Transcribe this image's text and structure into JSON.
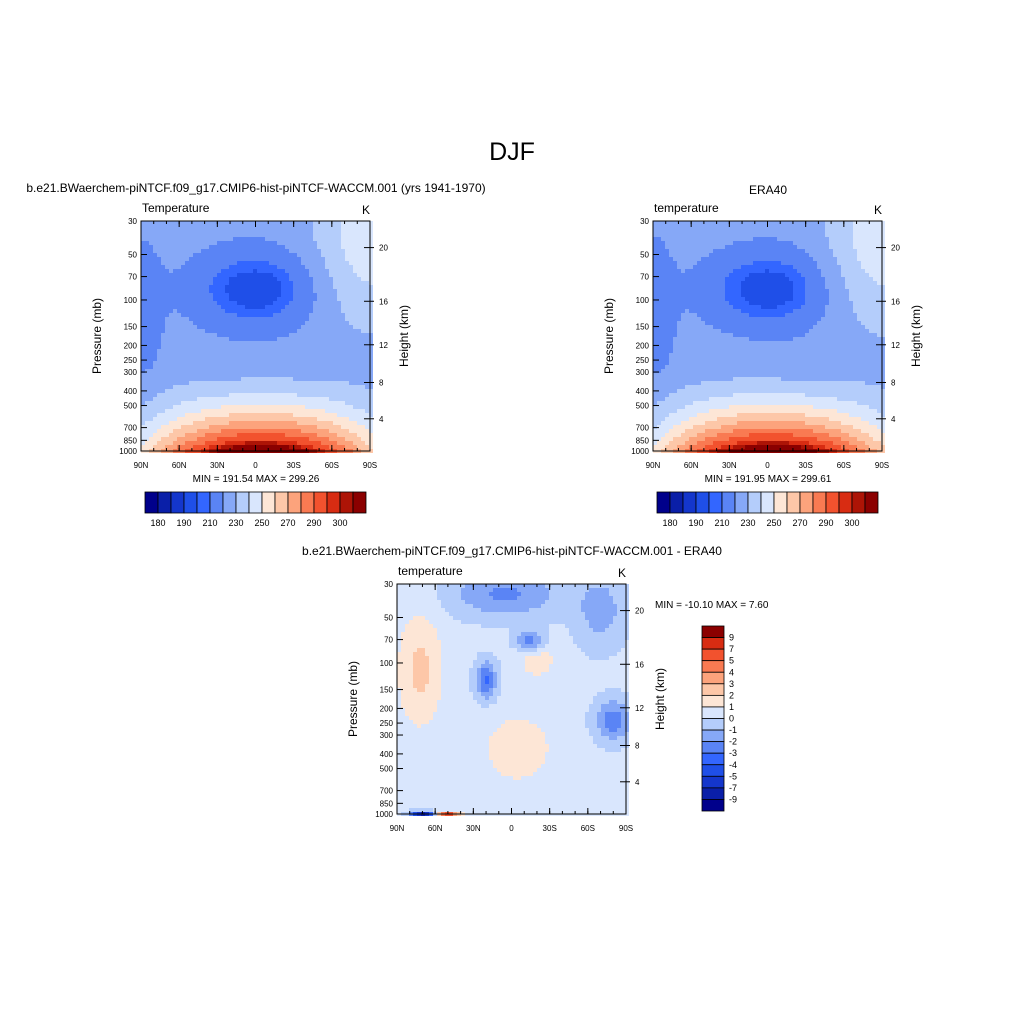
{
  "page": {
    "title": "DJF"
  },
  "chart_data": [
    {
      "type": "heatmap",
      "id": "model",
      "title": "b.e21.BWaerchem-piNTCF.f09_g17.CMIP6-hist-piNTCF-WACCM.001 (yrs 1941-1970)",
      "left_label": "Temperature",
      "right_label": "K",
      "ylabel": "Pressure (mb)",
      "ylabel_right": "Height (km)",
      "x_ticks": [
        "90N",
        "60N",
        "30N",
        "0",
        "30S",
        "60S",
        "90S"
      ],
      "y_ticks": [
        "30",
        "50",
        "70",
        "100",
        "150",
        "200",
        "250",
        "300",
        "400",
        "500",
        "700",
        "850",
        "1000"
      ],
      "y_right_ticks": [
        "20",
        "16",
        "12",
        "8",
        "4"
      ],
      "xlim": [
        90,
        -90
      ],
      "ylim": [
        30,
        1000
      ],
      "stats": "MIN = 191.54  MAX = 299.26",
      "levels": [
        180,
        185,
        190,
        195,
        200,
        210,
        220,
        230,
        240,
        250,
        260,
        270,
        280,
        290,
        295,
        300
      ],
      "colorbar_labels": [
        "180",
        "190",
        "210",
        "230",
        "250",
        "270",
        "290",
        "300"
      ],
      "colors": [
        "#00008b",
        "#0a1fa8",
        "#1436cc",
        "#1f4fe8",
        "#3366ff",
        "#5a84f5",
        "#86a8f7",
        "#b4cdfb",
        "#d9e6fd",
        "#fde6d6",
        "#fdc7a8",
        "#fca37c",
        "#f97a52",
        "#f2522e",
        "#d82c12",
        "#ad1406",
        "#8b0000"
      ],
      "fields": {
        "base": 205,
        "cold_core": {
          "lat": 0,
          "p": 85,
          "amp": -24
        },
        "trop_warm": {
          "amp": 94
        },
        "note": ""
      }
    },
    {
      "type": "heatmap",
      "id": "obs",
      "title": "ERA40",
      "left_label": "temperature",
      "right_label": "K",
      "ylabel": "Pressure (mb)",
      "ylabel_right": "Height (km)",
      "x_ticks": [
        "90N",
        "60N",
        "30N",
        "0",
        "30S",
        "60S",
        "90S"
      ],
      "y_ticks": [
        "30",
        "50",
        "70",
        "100",
        "150",
        "200",
        "250",
        "300",
        "400",
        "500",
        "700",
        "850",
        "1000"
      ],
      "y_right_ticks": [
        "20",
        "16",
        "12",
        "8",
        "4"
      ],
      "xlim": [
        90,
        -90
      ],
      "ylim": [
        30,
        1000
      ],
      "stats": "MIN = 191.95  MAX = 299.61",
      "levels": [
        180,
        185,
        190,
        195,
        200,
        210,
        220,
        230,
        240,
        250,
        260,
        270,
        280,
        290,
        295,
        300
      ],
      "colorbar_labels": [
        "180",
        "190",
        "210",
        "230",
        "250",
        "270",
        "290",
        "300"
      ],
      "colors": [
        "#00008b",
        "#0a1fa8",
        "#1436cc",
        "#1f4fe8",
        "#3366ff",
        "#5a84f5",
        "#86a8f7",
        "#b4cdfb",
        "#d9e6fd",
        "#fde6d6",
        "#fdc7a8",
        "#fca37c",
        "#f97a52",
        "#f2522e",
        "#d82c12",
        "#ad1406",
        "#8b0000"
      ]
    },
    {
      "type": "heatmap",
      "id": "diff",
      "title": "b.e21.BWaerchem-piNTCF.f09_g17.CMIP6-hist-piNTCF-WACCM.001 - ERA40",
      "left_label": "temperature",
      "right_label": "K",
      "ylabel": "Pressure (mb)",
      "ylabel_right": "Height (km)",
      "x_ticks": [
        "90N",
        "60N",
        "30N",
        "0",
        "30S",
        "60S",
        "90S"
      ],
      "y_ticks": [
        "30",
        "50",
        "70",
        "100",
        "150",
        "200",
        "250",
        "300",
        "400",
        "500",
        "700",
        "850",
        "1000"
      ],
      "y_right_ticks": [
        "20",
        "16",
        "12",
        "8",
        "4"
      ],
      "xlim": [
        90,
        -90
      ],
      "ylim": [
        30,
        1000
      ],
      "stats": "MIN = -10.10  MAX =   7.60",
      "levels": [
        -9,
        -7,
        -5,
        -4,
        -3,
        -2,
        -1,
        0,
        1,
        2,
        3,
        4,
        5,
        7,
        9
      ],
      "colorbar_labels": [
        "9",
        "7",
        "5",
        "4",
        "3",
        "2",
        "1",
        "0",
        "-1",
        "-2",
        "-3",
        "-4",
        "-5",
        "-7",
        "-9"
      ],
      "colors": [
        "#00008b",
        "#0a1fa8",
        "#1436cc",
        "#1f4fe8",
        "#3366ff",
        "#5a84f5",
        "#86a8f7",
        "#b4cdfb",
        "#d9e6fd",
        "#fde6d6",
        "#fdc7a8",
        "#fca37c",
        "#f97a52",
        "#f2522e",
        "#d82c12",
        "#8b0000"
      ]
    }
  ]
}
